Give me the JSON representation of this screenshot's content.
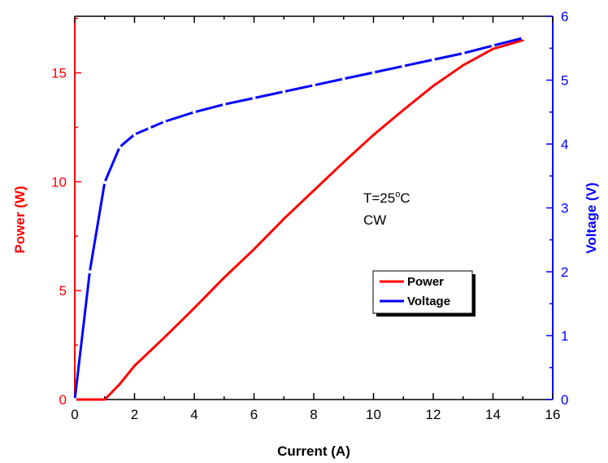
{
  "chart_data": {
    "type": "line",
    "title": "",
    "xlabel": "Current (A)",
    "ylabel_left": "Power (W)",
    "ylabel_right": "Voltage (V)",
    "xlim": [
      0,
      16
    ],
    "ylim_left": [
      0,
      17.6
    ],
    "ylim_right": [
      0,
      6
    ],
    "x_ticks": [
      0,
      2,
      4,
      6,
      8,
      10,
      12,
      14,
      16
    ],
    "y_left_ticks": [
      0,
      5,
      10,
      15
    ],
    "y_right_ticks": [
      0,
      1,
      2,
      3,
      4,
      5,
      6
    ],
    "grid": false,
    "legend_position": "center-right",
    "annotation": {
      "line1": "T=25",
      "degree": "o",
      "unit": "C",
      "line2": "CW"
    },
    "colors": {
      "power": "#ff0000",
      "voltage": "#0000ff",
      "axes": "#000000"
    },
    "series": [
      {
        "name": "Power",
        "axis": "left",
        "x": [
          0,
          0.5,
          1.0,
          1.5,
          2.0,
          2.5,
          3.0,
          4.0,
          5.0,
          6.0,
          7.0,
          8.0,
          9.0,
          10.0,
          11.0,
          12.0,
          13.0,
          14.0,
          15.0
        ],
        "y": [
          0,
          0,
          0,
          0.7,
          1.55,
          2.2,
          2.85,
          4.2,
          5.6,
          6.9,
          8.3,
          9.6,
          10.9,
          12.15,
          13.3,
          14.4,
          15.35,
          16.1,
          16.5
        ]
      },
      {
        "name": "Voltage",
        "axis": "right",
        "x": [
          0,
          0.5,
          1.0,
          1.5,
          2.0,
          2.5,
          3.0,
          4.0,
          5.0,
          6.0,
          7.0,
          8.0,
          9.0,
          10.0,
          11.0,
          12.0,
          13.0,
          14.0,
          15.0
        ],
        "y": [
          0,
          2.0,
          3.4,
          3.95,
          4.15,
          4.25,
          4.35,
          4.5,
          4.62,
          4.72,
          4.82,
          4.92,
          5.02,
          5.12,
          5.22,
          5.32,
          5.42,
          5.54,
          5.66
        ]
      }
    ]
  }
}
